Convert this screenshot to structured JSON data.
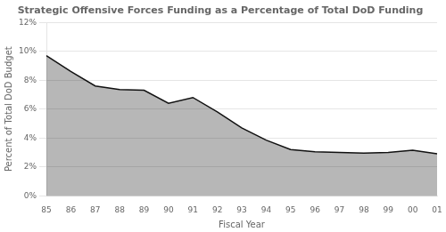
{
  "chart_data": {
    "type": "area",
    "title": "Strategic Offensive Forces Funding as a Percentage of Total DoD Funding",
    "xlabel": "Fiscal Year",
    "ylabel": "Percent of Total DoD Budget",
    "categories": [
      "85",
      "86",
      "87",
      "88",
      "89",
      "90",
      "91",
      "92",
      "93",
      "94",
      "95",
      "96",
      "97",
      "98",
      "99",
      "00",
      "01"
    ],
    "values": [
      9.7,
      8.6,
      7.6,
      7.35,
      7.3,
      6.4,
      6.8,
      5.8,
      4.7,
      3.85,
      3.2,
      3.05,
      3.0,
      2.95,
      3.0,
      3.15,
      2.9
    ],
    "color": "#111111",
    "ylim": [
      0,
      12
    ],
    "yticks": [
      {
        "value": 0,
        "label": "0%"
      },
      {
        "value": 2,
        "label": "2%"
      },
      {
        "value": 4,
        "label": "4%"
      },
      {
        "value": 6,
        "label": "6%"
      },
      {
        "value": 8,
        "label": "8%"
      },
      {
        "value": 10,
        "label": "10%"
      },
      {
        "value": 12,
        "label": "12%"
      }
    ],
    "grid": "y"
  }
}
